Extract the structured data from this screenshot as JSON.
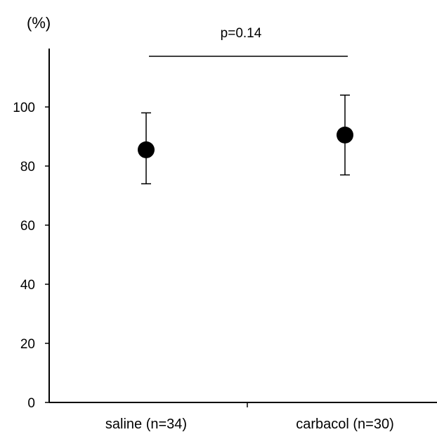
{
  "chart_data": {
    "type": "scatter",
    "ylabel": "(%)",
    "ylim": [
      0,
      120
    ],
    "yticks": [
      0,
      20,
      40,
      60,
      80,
      100
    ],
    "categories": [
      "saline (n=34)",
      "carbacol (n=30)"
    ],
    "points": [
      {
        "category": "saline (n=34)",
        "mean": 85.5,
        "lower": 74,
        "upper": 98
      },
      {
        "category": "carbacol (n=30)",
        "mean": 90.5,
        "lower": 77,
        "upper": 104
      }
    ],
    "annotation": {
      "text": "p=0.14",
      "between": [
        "saline (n=34)",
        "carbacol (n=30)"
      ]
    },
    "grid": false,
    "legend": "none",
    "colors": {
      "marker": "#000000",
      "axis": "#000000"
    }
  }
}
